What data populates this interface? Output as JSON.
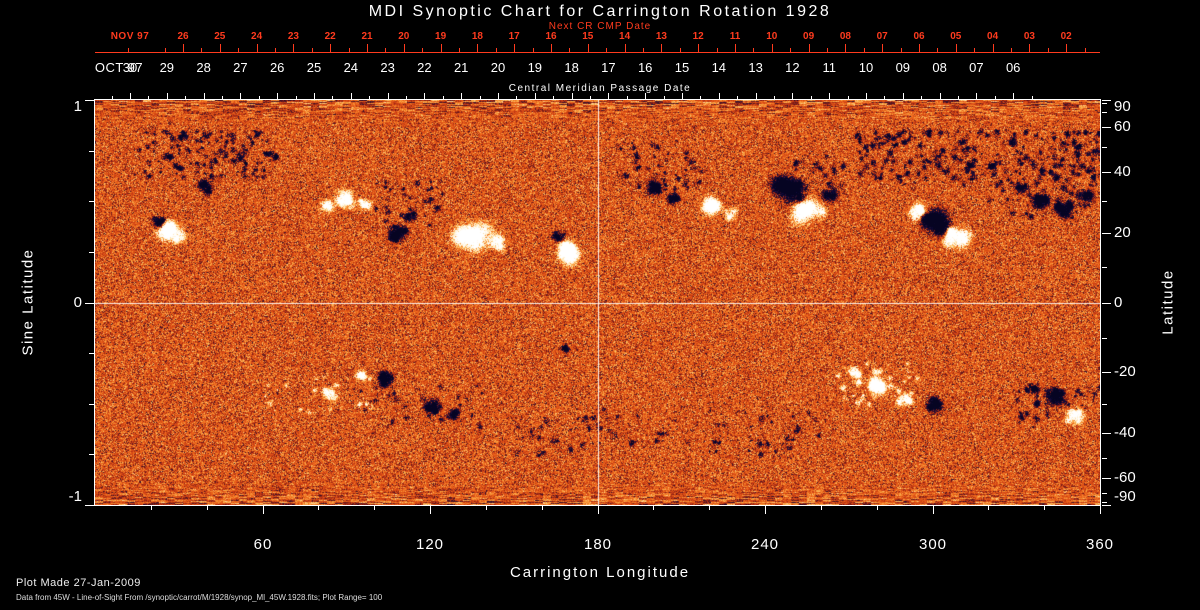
{
  "title": "MDI Synoptic Chart for Carrington Rotation 1928",
  "top_axis": {
    "label": "Next CR CMP Date",
    "month": "NOV 97",
    "days": [
      "26",
      "25",
      "24",
      "23",
      "22",
      "21",
      "20",
      "19",
      "18",
      "17",
      "16",
      "15",
      "14",
      "13",
      "12",
      "11",
      "10",
      "09",
      "08",
      "07",
      "06",
      "05",
      "04",
      "03",
      "02"
    ],
    "color": "#ff3b1e"
  },
  "cmp_axis": {
    "month": "OCT 97",
    "days": [
      "30",
      "29",
      "28",
      "27",
      "26",
      "25",
      "24",
      "23",
      "22",
      "21",
      "20",
      "19",
      "18",
      "17",
      "16",
      "15",
      "14",
      "13",
      "12",
      "11",
      "10",
      "09",
      "08",
      "07",
      "06"
    ],
    "label": "Central Meridian Passage Date"
  },
  "axes": {
    "left": {
      "label": "Sine Latitude",
      "ticks": [
        "1",
        "0",
        "-1"
      ]
    },
    "right": {
      "label": "Latitude",
      "ticks": [
        "90",
        "60",
        "40",
        "20",
        "0",
        "-20",
        "-40",
        "-60",
        "-90"
      ]
    },
    "bottom": {
      "label": "Carrington Longitude",
      "ticks": [
        "60",
        "120",
        "180",
        "240",
        "300",
        "360"
      ]
    }
  },
  "footer": {
    "line1": "Plot Made 27-Jan-2009",
    "line2": "Data from 45W - Line-of-Sight From /synoptic/carrot/M/1928/synop_Ml_45W.1928.fits; Plot Range=  100"
  },
  "chart_data": {
    "type": "heatmap",
    "title": "MDI Synoptic Chart for Carrington Rotation 1928",
    "xlabel": "Carrington Longitude",
    "ylabel_left": "Sine Latitude",
    "ylabel_right": "Latitude",
    "xlim": [
      0,
      360
    ],
    "ylim_sine": [
      -1,
      1
    ],
    "x_ticks": [
      60,
      120,
      180,
      240,
      300,
      360
    ],
    "y_left_ticks": [
      1,
      0,
      -1
    ],
    "y_right_ticks": [
      90,
      60,
      40,
      20,
      0,
      -20,
      -40,
      -60,
      -90
    ],
    "plot_range": 100,
    "crosshair": {
      "longitude": 180,
      "sine_latitude": 0
    },
    "colormap": {
      "strong_negative": "#06042a",
      "moderate_negative": "#781a18",
      "neutral": "#e2611c",
      "moderate_positive": "#fcb04c",
      "strong_positive": "#ffffff"
    },
    "active_regions": [
      {
        "longitude": 23,
        "sine_latitude": 0.4,
        "polarity": "negative",
        "size": 2.5,
        "strength": 1.9
      },
      {
        "longitude": 27,
        "sine_latitude": 0.35,
        "polarity": "positive",
        "size": 4.5,
        "strength": 2.6
      },
      {
        "longitude": 40,
        "sine_latitude": 0.57,
        "polarity": "negative",
        "size": 2.8,
        "strength": 2.1
      },
      {
        "longitude": 83,
        "sine_latitude": 0.48,
        "polarity": "positive",
        "size": 2.8,
        "strength": 1.7
      },
      {
        "longitude": 89,
        "sine_latitude": 0.52,
        "polarity": "positive",
        "size": 4.0,
        "strength": 2.1
      },
      {
        "longitude": 96,
        "sine_latitude": 0.49,
        "polarity": "positive",
        "size": 2.6,
        "strength": 1.7
      },
      {
        "longitude": 108,
        "sine_latitude": 0.34,
        "polarity": "negative",
        "size": 3.5,
        "strength": 2.4
      },
      {
        "longitude": 113,
        "sine_latitude": 0.43,
        "polarity": "negative",
        "size": 2.2,
        "strength": 1.7
      },
      {
        "longitude": 135,
        "sine_latitude": 0.33,
        "polarity": "positive",
        "size": 6.0,
        "strength": 2.7
      },
      {
        "longitude": 143,
        "sine_latitude": 0.3,
        "polarity": "positive",
        "size": 3.5,
        "strength": 1.9
      },
      {
        "longitude": 166,
        "sine_latitude": 0.33,
        "polarity": "negative",
        "size": 2.2,
        "strength": 1.6
      },
      {
        "longitude": 170,
        "sine_latitude": 0.24,
        "polarity": "positive",
        "size": 4.5,
        "strength": 2.5
      },
      {
        "longitude": 200,
        "sine_latitude": 0.57,
        "polarity": "negative",
        "size": 3.5,
        "strength": 2.3
      },
      {
        "longitude": 207,
        "sine_latitude": 0.52,
        "polarity": "negative",
        "size": 2.6,
        "strength": 1.9
      },
      {
        "longitude": 220,
        "sine_latitude": 0.48,
        "polarity": "positive",
        "size": 4.0,
        "strength": 2.0
      },
      {
        "longitude": 228,
        "sine_latitude": 0.44,
        "polarity": "positive",
        "size": 2.6,
        "strength": 1.6
      },
      {
        "longitude": 249,
        "sine_latitude": 0.55,
        "polarity": "negative",
        "size": 5.5,
        "strength": 2.9
      },
      {
        "longitude": 256,
        "sine_latitude": 0.46,
        "polarity": "positive",
        "size": 5.0,
        "strength": 2.6
      },
      {
        "longitude": 263,
        "sine_latitude": 0.53,
        "polarity": "negative",
        "size": 2.6,
        "strength": 1.7
      },
      {
        "longitude": 295,
        "sine_latitude": 0.45,
        "polarity": "positive",
        "size": 3.5,
        "strength": 1.8
      },
      {
        "longitude": 302,
        "sine_latitude": 0.4,
        "polarity": "negative",
        "size": 5.5,
        "strength": 2.9
      },
      {
        "longitude": 308,
        "sine_latitude": 0.32,
        "polarity": "positive",
        "size": 4.5,
        "strength": 2.4
      },
      {
        "longitude": 332,
        "sine_latitude": 0.56,
        "polarity": "negative",
        "size": 2.4,
        "strength": 1.6
      },
      {
        "longitude": 338,
        "sine_latitude": 0.5,
        "polarity": "negative",
        "size": 3.5,
        "strength": 2.2
      },
      {
        "longitude": 347,
        "sine_latitude": 0.46,
        "polarity": "negative",
        "size": 3.5,
        "strength": 2.3
      },
      {
        "longitude": 354,
        "sine_latitude": 0.52,
        "polarity": "negative",
        "size": 2.8,
        "strength": 2.0
      },
      {
        "longitude": 84,
        "sine_latitude": -0.45,
        "polarity": "positive",
        "size": 2.6,
        "strength": 1.7
      },
      {
        "longitude": 95,
        "sine_latitude": -0.36,
        "polarity": "positive",
        "size": 2.2,
        "strength": 1.5
      },
      {
        "longitude": 104,
        "sine_latitude": -0.38,
        "polarity": "negative",
        "size": 3.2,
        "strength": 2.5
      },
      {
        "longitude": 120,
        "sine_latitude": -0.51,
        "polarity": "negative",
        "size": 3.0,
        "strength": 2.2
      },
      {
        "longitude": 128,
        "sine_latitude": -0.55,
        "polarity": "negative",
        "size": 2.2,
        "strength": 1.6
      },
      {
        "longitude": 168,
        "sine_latitude": -0.22,
        "polarity": "negative",
        "size": 1.8,
        "strength": 1.4
      },
      {
        "longitude": 272,
        "sine_latitude": -0.35,
        "polarity": "positive",
        "size": 2.6,
        "strength": 1.6
      },
      {
        "longitude": 280,
        "sine_latitude": -0.4,
        "polarity": "positive",
        "size": 4.0,
        "strength": 2.1
      },
      {
        "longitude": 290,
        "sine_latitude": -0.47,
        "polarity": "positive",
        "size": 2.8,
        "strength": 1.8
      },
      {
        "longitude": 301,
        "sine_latitude": -0.51,
        "polarity": "negative",
        "size": 3.5,
        "strength": 2.3
      },
      {
        "longitude": 336,
        "sine_latitude": -0.42,
        "polarity": "negative",
        "size": 2.2,
        "strength": 1.6
      },
      {
        "longitude": 344,
        "sine_latitude": -0.47,
        "polarity": "negative",
        "size": 3.5,
        "strength": 2.3
      },
      {
        "longitude": 351,
        "sine_latitude": -0.56,
        "polarity": "positive",
        "size": 3.5,
        "strength": 2.1
      }
    ],
    "speckle_bands": [
      {
        "longitude_range": [
          15,
          65
        ],
        "sine_latitude_range": [
          0.62,
          0.85
        ],
        "polarity": "negative",
        "density": "high"
      },
      {
        "longitude_range": [
          100,
          125
        ],
        "sine_latitude_range": [
          0.38,
          0.6
        ],
        "polarity": "negative",
        "density": "medium"
      },
      {
        "longitude_range": [
          186,
          218
        ],
        "sine_latitude_range": [
          0.55,
          0.8
        ],
        "polarity": "negative",
        "density": "medium"
      },
      {
        "longitude_range": [
          250,
          268
        ],
        "sine_latitude_range": [
          0.55,
          0.75
        ],
        "polarity": "negative",
        "density": "medium"
      },
      {
        "longitude_range": [
          272,
          360
        ],
        "sine_latitude_range": [
          0.58,
          0.85
        ],
        "polarity": "negative",
        "density": "high"
      },
      {
        "longitude_range": [
          318,
          360
        ],
        "sine_latitude_range": [
          0.42,
          0.6
        ],
        "polarity": "negative",
        "density": "medium"
      },
      {
        "longitude_range": [
          150,
          260
        ],
        "sine_latitude_range": [
          -0.75,
          -0.52
        ],
        "polarity": "negative",
        "density": "low"
      },
      {
        "longitude_range": [
          95,
          140
        ],
        "sine_latitude_range": [
          -0.62,
          -0.4
        ],
        "polarity": "negative",
        "density": "low"
      },
      {
        "longitude_range": [
          330,
          360
        ],
        "sine_latitude_range": [
          -0.62,
          -0.4
        ],
        "polarity": "negative",
        "density": "medium"
      },
      {
        "longitude_range": [
          60,
          100
        ],
        "sine_latitude_range": [
          -0.55,
          -0.35
        ],
        "polarity": "positive",
        "density": "low"
      },
      {
        "longitude_range": [
          265,
          295
        ],
        "sine_latitude_range": [
          -0.5,
          -0.3
        ],
        "polarity": "positive",
        "density": "medium"
      }
    ]
  }
}
